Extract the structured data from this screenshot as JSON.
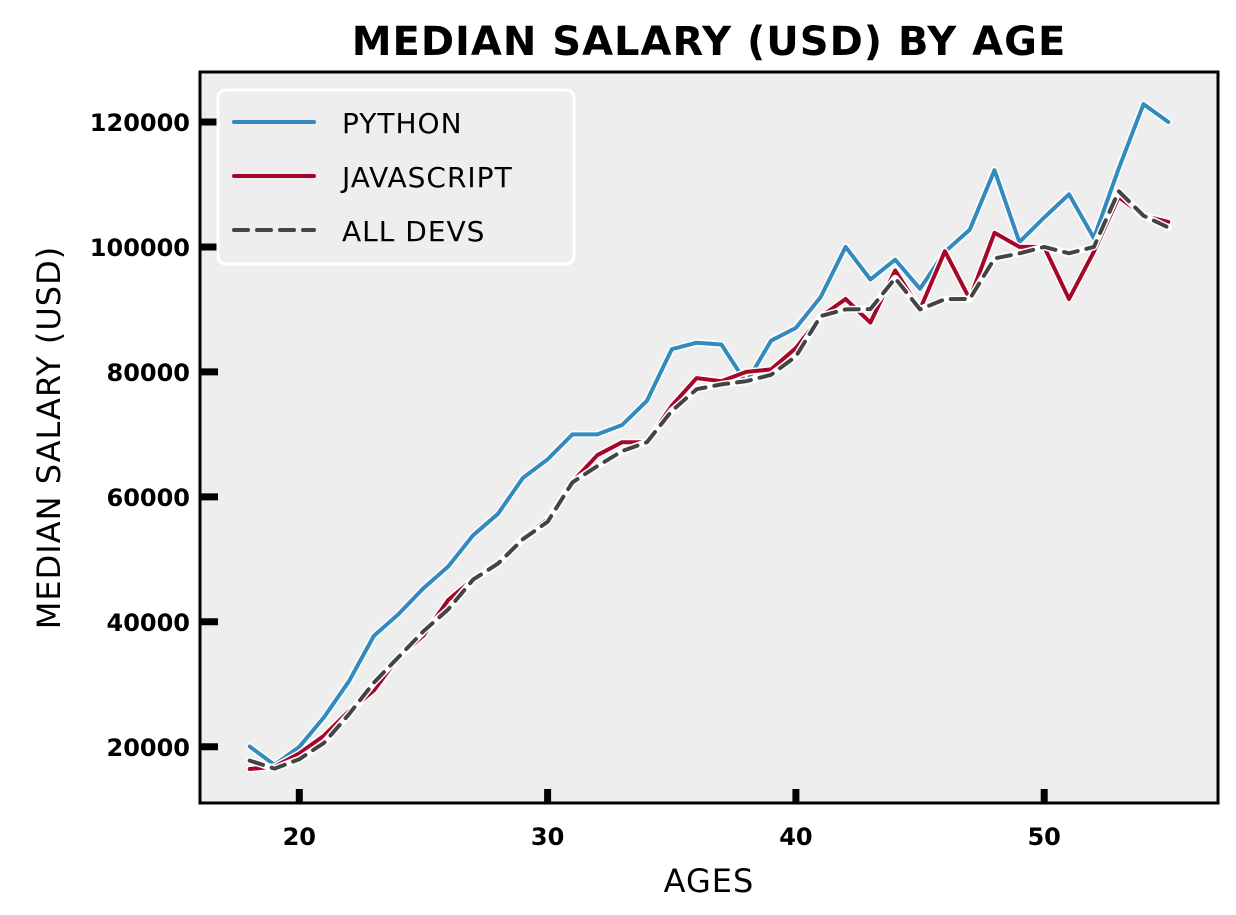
{
  "chart_data": {
    "type": "line",
    "title": "MEDIAN SALARY (USD) BY AGE",
    "xlabel": "AGES",
    "ylabel": "MEDIAN SALARY (USD)",
    "xlim": [
      16,
      57
    ],
    "ylim": [
      11000,
      128000
    ],
    "x_ticks": [
      20,
      30,
      40,
      50
    ],
    "y_ticks": [
      20000,
      40000,
      60000,
      80000,
      100000,
      120000
    ],
    "grid": false,
    "legend_position": "top-left",
    "x": [
      18,
      19,
      20,
      21,
      22,
      23,
      24,
      25,
      26,
      27,
      28,
      29,
      30,
      31,
      32,
      33,
      34,
      35,
      36,
      37,
      38,
      39,
      40,
      41,
      42,
      43,
      44,
      45,
      46,
      47,
      48,
      49,
      50,
      51,
      52,
      53,
      54,
      55
    ],
    "series": [
      {
        "name": "PYTHON",
        "color": "#348abd",
        "style": "solid",
        "values": [
          20046,
          17100,
          20000,
          24744,
          30500,
          37732,
          41247,
          45372,
          48876,
          53850,
          57287,
          63016,
          65998,
          70003,
          70000,
          71496,
          75370,
          83640,
          84666,
          84392,
          78254,
          85000,
          87038,
          91991,
          100000,
          94796,
          97962,
          93302,
          99240,
          102736,
          112285,
          100771,
          104708,
          108423,
          101407,
          112542,
          122870,
          120000
        ]
      },
      {
        "name": "JAVASCRIPT",
        "color": "#a60628",
        "style": "solid",
        "values": [
          16446,
          16791,
          18942,
          21780,
          25704,
          29000,
          34372,
          37810,
          43515,
          46823,
          49293,
          53437,
          56373,
          62375,
          66674,
          68745,
          68746,
          74583,
          79000,
          78508,
          79996,
          80403,
          83820,
          88833,
          91660,
          87892,
          96243,
          90000,
          99313,
          91660,
          102264,
          100000,
          100000,
          91660,
          99240,
          108000,
          105000,
          104000
        ]
      },
      {
        "name": "ALL DEVS",
        "color": "#444444",
        "style": "dashed",
        "values": [
          17784,
          16500,
          18012,
          20628,
          25206,
          30252,
          34368,
          38496,
          42000,
          46752,
          49320,
          53200,
          56000,
          62316,
          64928,
          67317,
          68748,
          73752,
          77232,
          78000,
          78508,
          79536,
          82488,
          88935,
          90000,
          90056,
          95000,
          90000,
          91633,
          91660,
          98150,
          98964,
          100000,
          98988,
          100000,
          108923,
          105000,
          103117
        ]
      }
    ]
  }
}
